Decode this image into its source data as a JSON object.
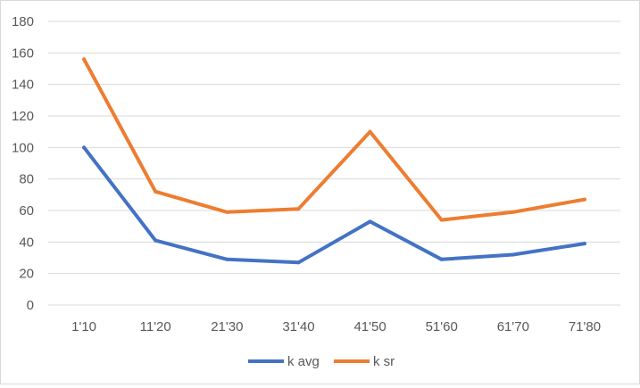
{
  "chart_data": {
    "type": "line",
    "categories": [
      "1'10",
      "11'20",
      "21'30",
      "31'40",
      "41'50",
      "51'60",
      "61'70",
      "71'80"
    ],
    "series": [
      {
        "name": "k avg",
        "color": "#4472C4",
        "values": [
          100,
          41,
          29,
          27,
          53,
          29,
          32,
          39
        ]
      },
      {
        "name": "k sr",
        "color": "#ED7D31",
        "values": [
          156,
          72,
          59,
          61,
          110,
          54,
          59,
          67
        ]
      }
    ],
    "ylim": [
      0,
      180
    ],
    "yticks": [
      0,
      20,
      40,
      60,
      80,
      100,
      120,
      140,
      160,
      180
    ],
    "grid": true,
    "legend": "bottom"
  }
}
